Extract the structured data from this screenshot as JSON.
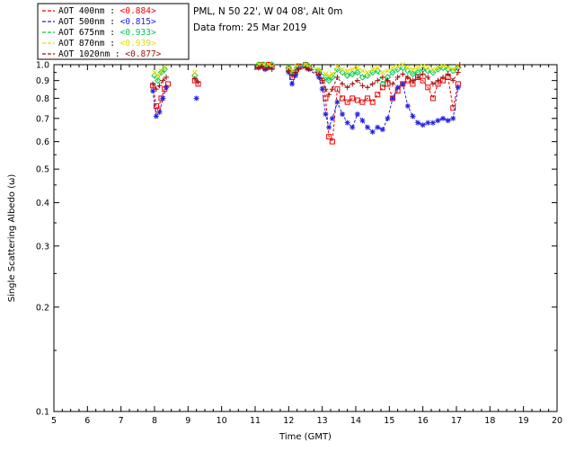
{
  "header": {
    "site_line": "PML, N 50 22', W 04 08', Alt 0m",
    "date_line": "Data from: 25 Mar 2019"
  },
  "legend": {
    "entries": [
      {
        "label": "AOT  400nm : ",
        "value": "<0.884>",
        "color": "#ee0000"
      },
      {
        "label": "AOT  500nm : ",
        "value": "<0.815>",
        "color": "#2222e0"
      },
      {
        "label": "AOT  675nm : ",
        "value": "<0.933>",
        "color": "#00c850"
      },
      {
        "label": "AOT  870nm : ",
        "value": "<0.939>",
        "color": "#e0e000"
      },
      {
        "label": "AOT 1020nm : ",
        "value": "<0.877>",
        "color": "#a01010"
      }
    ]
  },
  "chart_data": {
    "type": "line",
    "title": "",
    "xlabel": "Time (GMT)",
    "ylabel": "Single Scattering Albedo (ω)",
    "xlim": [
      5,
      20
    ],
    "ylim": [
      0.1,
      1.0
    ],
    "yscale": "log",
    "grid": false,
    "legend_position": "top-left",
    "xticks": [
      5,
      6,
      7,
      8,
      9,
      10,
      11,
      12,
      13,
      14,
      15,
      16,
      17,
      18,
      19,
      20
    ],
    "yticks": [
      1.0,
      0.9,
      0.8,
      0.7,
      0.6,
      0.5,
      0.4,
      0.3,
      0.2,
      0.1
    ],
    "series": [
      {
        "name": "AOT 400nm",
        "mean": "<0.884>",
        "color": "#ee0000",
        "marker": "square",
        "points": [
          [
            7.95,
            0.87
          ],
          [
            8.05,
            0.76
          ],
          [
            8.1,
            0.74
          ],
          [
            8.2,
            0.8
          ],
          [
            8.3,
            0.85
          ],
          [
            8.4,
            0.88
          ],
          [
            9.2,
            0.9
          ],
          [
            9.3,
            0.88
          ],
          [
            11.1,
            0.99
          ],
          [
            11.2,
            1.0
          ],
          [
            11.3,
            0.98
          ],
          [
            11.4,
            1.0
          ],
          [
            11.5,
            0.99
          ],
          [
            12.0,
            0.97
          ],
          [
            12.1,
            0.92
          ],
          [
            12.2,
            0.95
          ],
          [
            12.3,
            0.99
          ],
          [
            12.5,
            1.0
          ],
          [
            12.6,
            0.98
          ],
          [
            12.9,
            0.95
          ],
          [
            13.0,
            0.9
          ],
          [
            13.1,
            0.8
          ],
          [
            13.2,
            0.62
          ],
          [
            13.3,
            0.6
          ],
          [
            13.45,
            0.85
          ],
          [
            13.6,
            0.8
          ],
          [
            13.75,
            0.78
          ],
          [
            13.9,
            0.8
          ],
          [
            14.05,
            0.79
          ],
          [
            14.2,
            0.78
          ],
          [
            14.35,
            0.8
          ],
          [
            14.5,
            0.78
          ],
          [
            14.65,
            0.82
          ],
          [
            14.8,
            0.86
          ],
          [
            14.95,
            0.88
          ],
          [
            15.1,
            0.8
          ],
          [
            15.25,
            0.84
          ],
          [
            15.4,
            0.88
          ],
          [
            15.55,
            0.9
          ],
          [
            15.7,
            0.88
          ],
          [
            15.85,
            0.92
          ],
          [
            16.0,
            0.9
          ],
          [
            16.15,
            0.86
          ],
          [
            16.3,
            0.8
          ],
          [
            16.45,
            0.88
          ],
          [
            16.6,
            0.9
          ],
          [
            16.75,
            0.92
          ],
          [
            16.9,
            0.75
          ],
          [
            17.05,
            0.88
          ]
        ]
      },
      {
        "name": "AOT 500nm",
        "mean": "<0.815>",
        "color": "#2222e0",
        "marker": "asterisk",
        "points": [
          [
            7.95,
            0.84
          ],
          [
            8.05,
            0.71
          ],
          [
            8.15,
            0.73
          ],
          [
            8.25,
            0.8
          ],
          [
            8.35,
            0.86
          ],
          [
            9.25,
            0.8
          ],
          [
            11.1,
            0.98
          ],
          [
            11.2,
            0.99
          ],
          [
            11.3,
            0.97
          ],
          [
            11.4,
            0.99
          ],
          [
            11.5,
            0.98
          ],
          [
            12.0,
            0.95
          ],
          [
            12.1,
            0.88
          ],
          [
            12.2,
            0.93
          ],
          [
            12.3,
            0.98
          ],
          [
            12.5,
            0.99
          ],
          [
            12.6,
            0.97
          ],
          [
            12.9,
            0.92
          ],
          [
            13.0,
            0.85
          ],
          [
            13.1,
            0.72
          ],
          [
            13.2,
            0.66
          ],
          [
            13.3,
            0.7
          ],
          [
            13.45,
            0.78
          ],
          [
            13.6,
            0.72
          ],
          [
            13.75,
            0.68
          ],
          [
            13.9,
            0.66
          ],
          [
            14.05,
            0.72
          ],
          [
            14.2,
            0.69
          ],
          [
            14.35,
            0.66
          ],
          [
            14.5,
            0.64
          ],
          [
            14.65,
            0.66
          ],
          [
            14.8,
            0.65
          ],
          [
            14.95,
            0.7
          ],
          [
            15.1,
            0.8
          ],
          [
            15.25,
            0.86
          ],
          [
            15.4,
            0.88
          ],
          [
            15.55,
            0.76
          ],
          [
            15.7,
            0.71
          ],
          [
            15.85,
            0.68
          ],
          [
            16.0,
            0.67
          ],
          [
            16.15,
            0.68
          ],
          [
            16.3,
            0.68
          ],
          [
            16.45,
            0.69
          ],
          [
            16.6,
            0.7
          ],
          [
            16.75,
            0.69
          ],
          [
            16.9,
            0.7
          ],
          [
            17.05,
            0.86
          ]
        ]
      },
      {
        "name": "AOT 675nm",
        "mean": "<0.933>",
        "color": "#00c850",
        "marker": "diamond",
        "points": [
          [
            8.0,
            0.93
          ],
          [
            8.1,
            0.9
          ],
          [
            8.2,
            0.95
          ],
          [
            8.3,
            0.97
          ],
          [
            9.2,
            0.93
          ],
          [
            11.1,
            1.0
          ],
          [
            11.25,
            1.0
          ],
          [
            11.4,
            0.99
          ],
          [
            11.5,
            1.0
          ],
          [
            12.0,
            0.98
          ],
          [
            12.1,
            0.95
          ],
          [
            12.25,
            0.98
          ],
          [
            12.5,
            1.0
          ],
          [
            12.6,
            0.99
          ],
          [
            12.9,
            0.96
          ],
          [
            13.1,
            0.92
          ],
          [
            13.2,
            0.9
          ],
          [
            13.3,
            0.92
          ],
          [
            13.45,
            0.97
          ],
          [
            13.6,
            0.95
          ],
          [
            13.75,
            0.93
          ],
          [
            13.9,
            0.94
          ],
          [
            14.05,
            0.95
          ],
          [
            14.2,
            0.92
          ],
          [
            14.35,
            0.93
          ],
          [
            14.5,
            0.95
          ],
          [
            14.65,
            0.96
          ],
          [
            14.8,
            0.88
          ],
          [
            14.95,
            0.92
          ],
          [
            15.1,
            0.95
          ],
          [
            15.25,
            0.97
          ],
          [
            15.4,
            0.98
          ],
          [
            15.55,
            0.96
          ],
          [
            15.7,
            0.94
          ],
          [
            15.85,
            0.95
          ],
          [
            16.0,
            0.97
          ],
          [
            16.15,
            0.96
          ],
          [
            16.3,
            0.95
          ],
          [
            16.45,
            0.97
          ],
          [
            16.6,
            0.98
          ],
          [
            16.75,
            0.97
          ],
          [
            16.9,
            0.96
          ],
          [
            17.05,
            0.98
          ]
        ]
      },
      {
        "name": "AOT 870nm",
        "mean": "<0.939>",
        "color": "#e0e000",
        "marker": "xcross",
        "points": [
          [
            8.0,
            0.95
          ],
          [
            8.1,
            0.93
          ],
          [
            8.2,
            0.96
          ],
          [
            8.3,
            0.98
          ],
          [
            9.2,
            0.95
          ],
          [
            11.1,
            1.0
          ],
          [
            11.25,
            1.0
          ],
          [
            11.4,
            1.0
          ],
          [
            11.5,
            0.99
          ],
          [
            12.0,
            0.98
          ],
          [
            12.1,
            0.96
          ],
          [
            12.25,
            0.99
          ],
          [
            12.5,
            1.0
          ],
          [
            12.6,
            0.99
          ],
          [
            12.9,
            0.97
          ],
          [
            13.1,
            0.94
          ],
          [
            13.2,
            0.93
          ],
          [
            13.3,
            0.94
          ],
          [
            13.45,
            0.99
          ],
          [
            13.6,
            0.97
          ],
          [
            13.75,
            0.96
          ],
          [
            13.9,
            0.97
          ],
          [
            14.05,
            0.98
          ],
          [
            14.2,
            0.96
          ],
          [
            14.35,
            0.95
          ],
          [
            14.5,
            0.97
          ],
          [
            14.65,
            0.98
          ],
          [
            14.8,
            0.95
          ],
          [
            14.95,
            0.96
          ],
          [
            15.1,
            0.98
          ],
          [
            15.25,
            0.99
          ],
          [
            15.4,
            1.0
          ],
          [
            15.55,
            0.98
          ],
          [
            15.7,
            0.97
          ],
          [
            15.85,
            0.98
          ],
          [
            16.0,
            0.99
          ],
          [
            16.15,
            0.98
          ],
          [
            16.3,
            0.97
          ],
          [
            16.45,
            0.98
          ],
          [
            16.6,
            0.99
          ],
          [
            16.75,
            0.98
          ],
          [
            16.9,
            0.97
          ],
          [
            17.05,
            0.99
          ]
        ]
      },
      {
        "name": "AOT 1020nm",
        "mean": "<0.877>",
        "color": "#a01010",
        "marker": "plus",
        "points": [
          [
            7.95,
            0.88
          ],
          [
            8.05,
            0.85
          ],
          [
            8.15,
            0.87
          ],
          [
            8.25,
            0.9
          ],
          [
            8.35,
            0.92
          ],
          [
            9.2,
            0.91
          ],
          [
            9.3,
            0.89
          ],
          [
            11.1,
            0.98
          ],
          [
            11.2,
            0.99
          ],
          [
            11.3,
            0.97
          ],
          [
            11.4,
            0.98
          ],
          [
            11.5,
            0.97
          ],
          [
            12.0,
            0.96
          ],
          [
            12.1,
            0.93
          ],
          [
            12.2,
            0.95
          ],
          [
            12.3,
            0.97
          ],
          [
            12.5,
            0.98
          ],
          [
            12.6,
            0.97
          ],
          [
            12.9,
            0.94
          ],
          [
            13.0,
            0.9
          ],
          [
            13.1,
            0.85
          ],
          [
            13.2,
            0.82
          ],
          [
            13.3,
            0.85
          ],
          [
            13.45,
            0.92
          ],
          [
            13.6,
            0.88
          ],
          [
            13.75,
            0.86
          ],
          [
            13.9,
            0.88
          ],
          [
            14.05,
            0.9
          ],
          [
            14.2,
            0.87
          ],
          [
            14.35,
            0.86
          ],
          [
            14.5,
            0.88
          ],
          [
            14.65,
            0.9
          ],
          [
            14.8,
            0.92
          ],
          [
            14.95,
            0.9
          ],
          [
            15.1,
            0.88
          ],
          [
            15.25,
            0.92
          ],
          [
            15.4,
            0.94
          ],
          [
            15.55,
            0.92
          ],
          [
            15.7,
            0.9
          ],
          [
            15.85,
            0.92
          ],
          [
            16.0,
            0.94
          ],
          [
            16.15,
            0.92
          ],
          [
            16.3,
            0.88
          ],
          [
            16.45,
            0.9
          ],
          [
            16.6,
            0.92
          ],
          [
            16.75,
            0.94
          ],
          [
            16.9,
            0.9
          ],
          [
            17.05,
            0.95
          ],
          [
            17.1,
            1.0
          ]
        ]
      }
    ]
  }
}
